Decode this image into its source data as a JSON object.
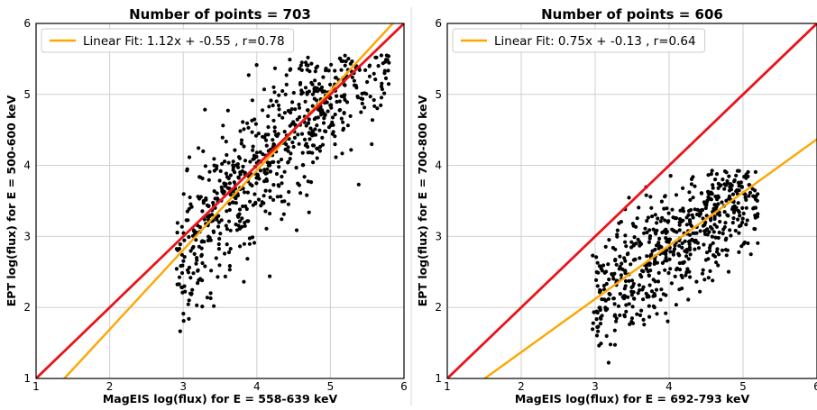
{
  "chart_data": [
    {
      "type": "scatter",
      "title": "Number of points = 703",
      "xlabel": "MagEIS log(flux) for E = 558-639 keV",
      "ylabel": "EPT log(flux) for E = 500-600 keV",
      "xlim": [
        1,
        6
      ],
      "ylim": [
        1,
        6
      ],
      "xticks": [
        "1",
        "2",
        "3",
        "4",
        "5",
        "6"
      ],
      "yticks": [
        "1",
        "2",
        "3",
        "4",
        "5",
        "6"
      ],
      "grid": true,
      "legend_position": "top-left",
      "n_points": 703,
      "point_color": "#000000",
      "point_cloud": {
        "x_range": [
          2.9,
          5.8
        ],
        "y_range": [
          1.55,
          5.55
        ],
        "slope": 1.12,
        "intercept": -0.55,
        "spread": 0.5
      },
      "lines": [
        {
          "name": "Linear Fit: 1.12x + -0.55 , r=0.78",
          "slope": 1.12,
          "intercept": -0.55,
          "color": "#FFA500"
        },
        {
          "slope": 1,
          "intercept": 0,
          "color": "#E8141B"
        }
      ]
    },
    {
      "type": "scatter",
      "title": "Number of points = 606",
      "xlabel": "MagEIS log(flux) for E = 692-793 keV",
      "ylabel": "EPT log(flux) for E = 700-800 keV",
      "xlim": [
        1,
        6
      ],
      "ylim": [
        1,
        6
      ],
      "xticks": [
        "1",
        "2",
        "3",
        "4",
        "5",
        "6"
      ],
      "yticks": [
        "1",
        "2",
        "3",
        "4",
        "5",
        "6"
      ],
      "grid": true,
      "legend_position": "top-left",
      "n_points": 606,
      "point_color": "#000000",
      "point_cloud": {
        "x_range": [
          2.95,
          5.2
        ],
        "y_range": [
          1.1,
          3.95
        ],
        "slope": 0.75,
        "intercept": -0.13,
        "spread": 0.42
      },
      "lines": [
        {
          "name": "Linear Fit: 0.75x + -0.13 , r=0.64",
          "slope": 0.75,
          "intercept": -0.13,
          "color": "#FFA500"
        },
        {
          "slope": 1,
          "intercept": 0,
          "color": "#E8141B"
        }
      ]
    }
  ]
}
